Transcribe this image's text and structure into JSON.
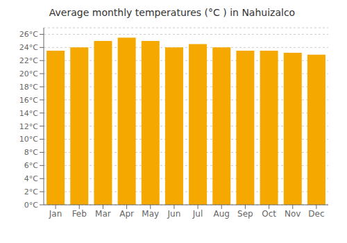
{
  "chart_data": {
    "type": "bar",
    "title": "Average monthly temperatures (°C ) in Nahuizalco",
    "categories": [
      "Jan",
      "Feb",
      "Mar",
      "Apr",
      "May",
      "Jun",
      "Jul",
      "Aug",
      "Sep",
      "Oct",
      "Nov",
      "Dec"
    ],
    "values": [
      23.5,
      24.0,
      25.0,
      25.5,
      25.0,
      24.0,
      24.5,
      24.0,
      23.5,
      23.5,
      23.2,
      22.9
    ],
    "color": "#F5A800",
    "ylim": [
      0,
      27
    ],
    "yticks": [
      {
        "value": 0,
        "label": "0°C"
      },
      {
        "value": 2,
        "label": "2°C"
      },
      {
        "value": 4,
        "label": "4°C"
      },
      {
        "value": 6,
        "label": "6°C"
      },
      {
        "value": 8,
        "label": "8°C"
      },
      {
        "value": 10,
        "label": "10°C"
      },
      {
        "value": 12,
        "label": "12°C"
      },
      {
        "value": 14,
        "label": "14°C"
      },
      {
        "value": 16,
        "label": "16°C"
      },
      {
        "value": 18,
        "label": "18°C"
      },
      {
        "value": 20,
        "label": "20°C"
      },
      {
        "value": 22,
        "label": "22°C"
      },
      {
        "value": 24,
        "label": "24°C"
      },
      {
        "value": 26,
        "label": "26°C"
      }
    ],
    "grid": true
  }
}
